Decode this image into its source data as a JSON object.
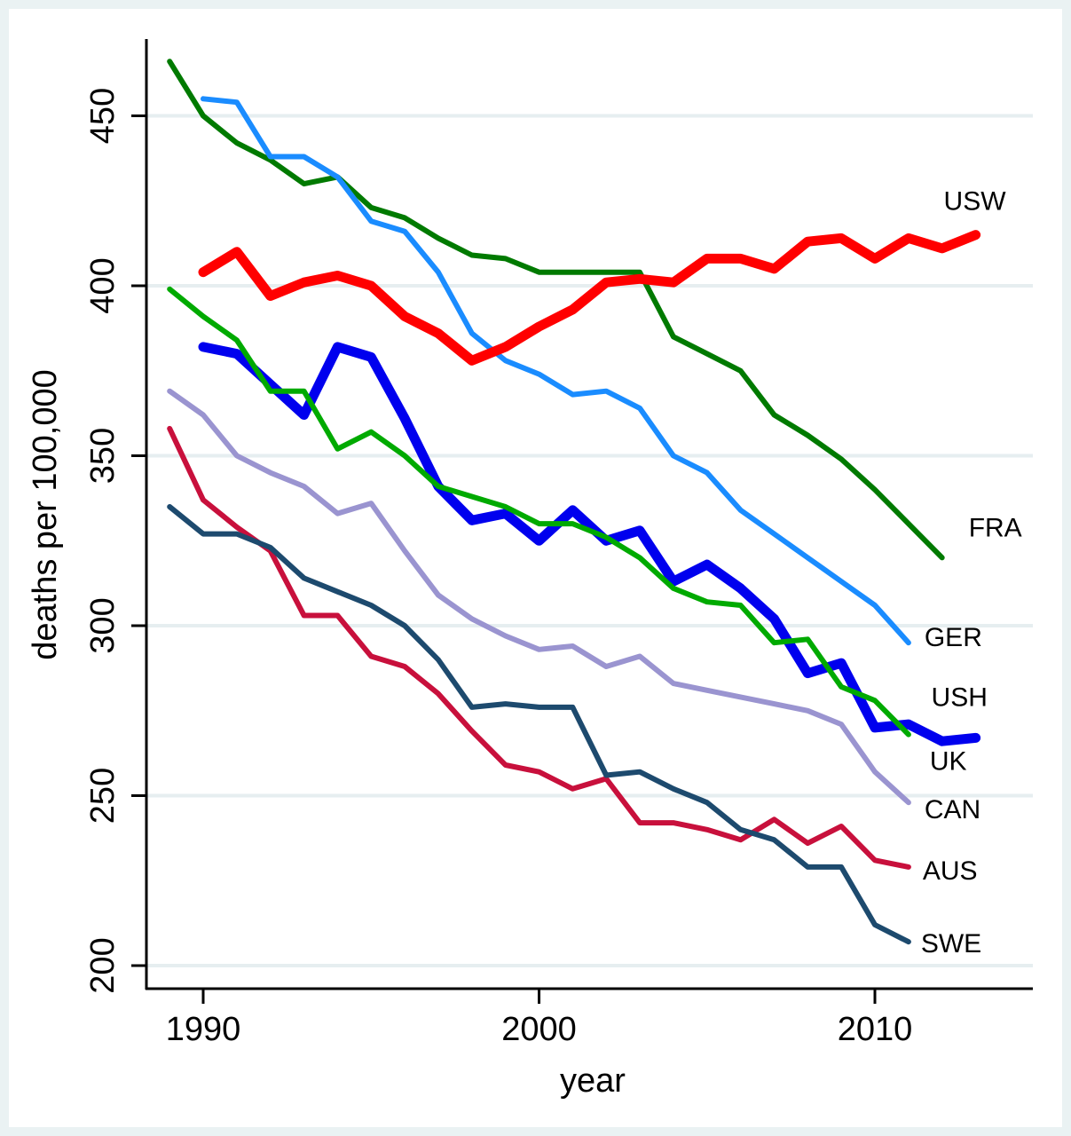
{
  "chart_data": {
    "type": "line",
    "title": "",
    "xlabel": "year",
    "ylabel": "deaths per 100,000",
    "xlim": [
      1988.3,
      2014.7
    ],
    "ylim": [
      193,
      473
    ],
    "xticks": [
      1990,
      2000,
      2010
    ],
    "xtick_labels": [
      "1990",
      "2000",
      "2010"
    ],
    "yticks": [
      200,
      250,
      300,
      350,
      400,
      450
    ],
    "ytick_labels": [
      "200",
      "250",
      "300",
      "350",
      "400",
      "450"
    ],
    "grid": "horizontal",
    "legend": "none (direct labels at right end of lines)",
    "series": [
      {
        "name": "FRA",
        "color": "#007a00",
        "width": "normal",
        "start_year": 1989,
        "values": [
          466,
          450,
          442,
          437,
          430,
          432,
          423,
          420,
          414,
          409,
          408,
          404,
          404,
          404,
          404,
          385,
          380,
          375,
          362,
          356,
          349,
          340,
          330,
          320
        ]
      },
      {
        "name": "GER",
        "color": "#1a8cff",
        "width": "normal",
        "start_year": 1990,
        "values": [
          455,
          454,
          438,
          438,
          432,
          419,
          416,
          404,
          386,
          378,
          374,
          368,
          369,
          364,
          350,
          345,
          334,
          327,
          320,
          313,
          306,
          295
        ]
      },
      {
        "name": "USW",
        "color": "#ff0000",
        "width": "thick",
        "start_year": 1990,
        "values": [
          404,
          410,
          397,
          401,
          403,
          400,
          391,
          386,
          378,
          382,
          388,
          393,
          401,
          402,
          401,
          408,
          408,
          405,
          413,
          414,
          408,
          414,
          411,
          415
        ]
      },
      {
        "name": "USH",
        "color": "#0000ee",
        "width": "thick",
        "start_year": 1990,
        "values": [
          382,
          380,
          371,
          362,
          382,
          379,
          361,
          341,
          331,
          333,
          325,
          334,
          325,
          328,
          313,
          318,
          311,
          302,
          286,
          289,
          270,
          271,
          266,
          267
        ]
      },
      {
        "name": "UK",
        "color": "#00aa00",
        "width": "normal",
        "start_year": 1989,
        "values": [
          399,
          391,
          384,
          369,
          369,
          352,
          357,
          350,
          341,
          338,
          335,
          330,
          330,
          326,
          320,
          311,
          307,
          306,
          295,
          296,
          282,
          278,
          268
        ]
      },
      {
        "name": "CAN",
        "color": "#9a94d0",
        "width": "normal",
        "start_year": 1989,
        "values": [
          369,
          362,
          350,
          345,
          341,
          333,
          336,
          322,
          309,
          302,
          297,
          293,
          294,
          288,
          291,
          283,
          281,
          279,
          277,
          275,
          271,
          257,
          248
        ]
      },
      {
        "name": "AUS",
        "color": "#c8103c",
        "width": "normal",
        "start_year": 1989,
        "values": [
          358,
          337,
          329,
          322,
          303,
          303,
          291,
          288,
          280,
          269,
          259,
          257,
          252,
          255,
          242,
          242,
          240,
          237,
          243,
          236,
          241,
          231,
          229
        ]
      },
      {
        "name": "SWE",
        "color": "#1d4a6e",
        "width": "normal",
        "start_year": 1989,
        "values": [
          335,
          327,
          327,
          323,
          314,
          310,
          306,
          300,
          290,
          276,
          277,
          276,
          276,
          256,
          257,
          252,
          248,
          240,
          237,
          229,
          229,
          212,
          207
        ]
      }
    ],
    "annotations": [
      {
        "text": "USW",
        "series": "USW"
      },
      {
        "text": "FRA",
        "series": "FRA"
      },
      {
        "text": "GER",
        "series": "GER"
      },
      {
        "text": "USH",
        "series": "USH"
      },
      {
        "text": "UK",
        "series": "UK"
      },
      {
        "text": "CAN",
        "series": "CAN"
      },
      {
        "text": "AUS",
        "series": "AUS"
      },
      {
        "text": "SWE",
        "series": "SWE"
      }
    ]
  },
  "colors": {
    "background": "#eaf2f3",
    "plot_background": "#ffffff",
    "gridline": "#e6eef0",
    "axis": "#000000"
  }
}
